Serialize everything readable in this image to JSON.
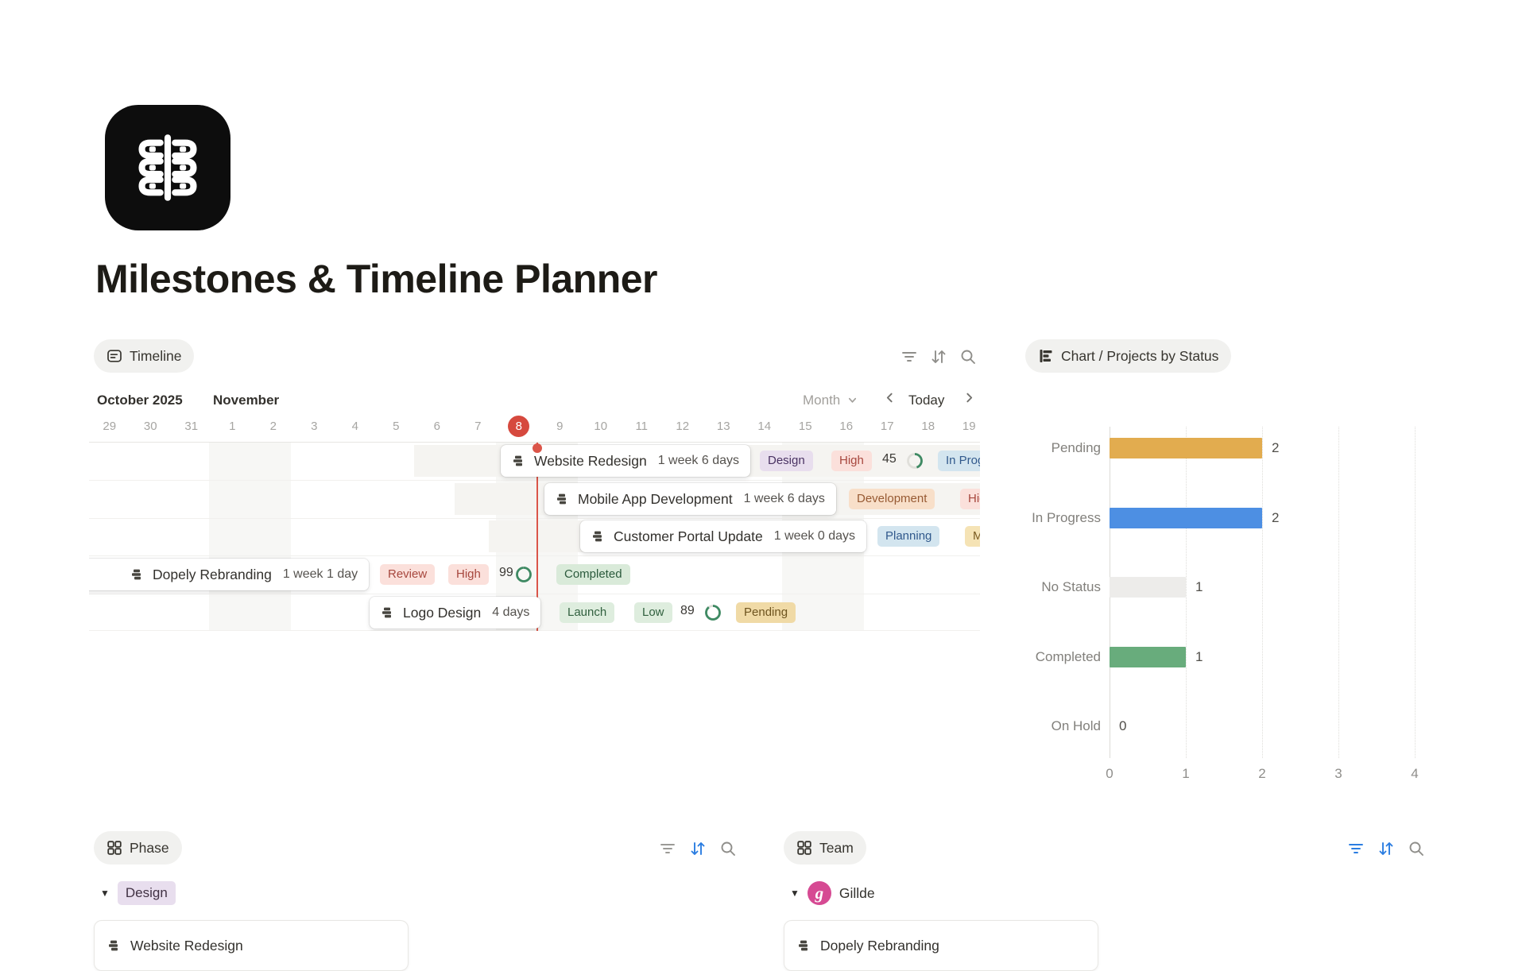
{
  "page": {
    "title": "Milestones & Timeline Planner"
  },
  "timeline": {
    "view_label": "Timeline",
    "month_left": "October 2025",
    "month_right": "November",
    "dates": [
      "29",
      "30",
      "31",
      "1",
      "2",
      "3",
      "4",
      "5",
      "6",
      "7",
      "8",
      "9",
      "10",
      "11",
      "12",
      "13",
      "14",
      "15",
      "16",
      "17",
      "18",
      "19"
    ],
    "today_date": "8",
    "zoom_label": "Month",
    "today_label": "Today",
    "rows": [
      {
        "title": "Website Redesign",
        "duration": "1 week 6 days",
        "phase": "Design",
        "priority": "High",
        "progress": "45",
        "progress_pct": 45,
        "status": "In Progress"
      },
      {
        "title": "Mobile App Development",
        "duration": "1 week 6 days",
        "phase": "Development",
        "priority": "High"
      },
      {
        "title": "Customer Portal Update",
        "duration": "1 week 0 days",
        "phase": "Planning",
        "priority": "Medium"
      },
      {
        "title": "Dopely Rebranding",
        "duration": "1 week 1 day",
        "phase": "Review",
        "priority": "High",
        "progress": "99",
        "progress_pct": 99,
        "status": "Completed"
      },
      {
        "title": "Logo Design",
        "duration": "4 days",
        "phase": "Launch",
        "priority": "Low",
        "progress": "89",
        "progress_pct": 89,
        "status": "Pending"
      }
    ]
  },
  "chart_data": {
    "type": "bar",
    "orientation": "horizontal",
    "title": "Chart / Projects by Status",
    "categories": [
      "Pending",
      "In Progress",
      "No Status",
      "Completed",
      "On Hold"
    ],
    "values": [
      2,
      2,
      1,
      1,
      0
    ],
    "bar_colors": [
      "#E2AC4F",
      "#4D8FE3",
      "#EDECEA",
      "#68AC7C",
      "#EDECEA"
    ],
    "x_ticks": [
      "0",
      "1",
      "2",
      "3",
      "4"
    ],
    "xlim": [
      0,
      4
    ],
    "grid": "dotted-vertical",
    "legend": "none"
  },
  "phase_section": {
    "view_label": "Phase",
    "group": {
      "label": "Design",
      "color": "#E8DEEE"
    },
    "cards": [
      {
        "title": "Website Redesign"
      }
    ]
  },
  "team_section": {
    "view_label": "Team",
    "group": {
      "label": "Gillde",
      "avatar_letter": "g"
    },
    "cards": [
      {
        "title": "Dopely Rebranding"
      }
    ]
  }
}
